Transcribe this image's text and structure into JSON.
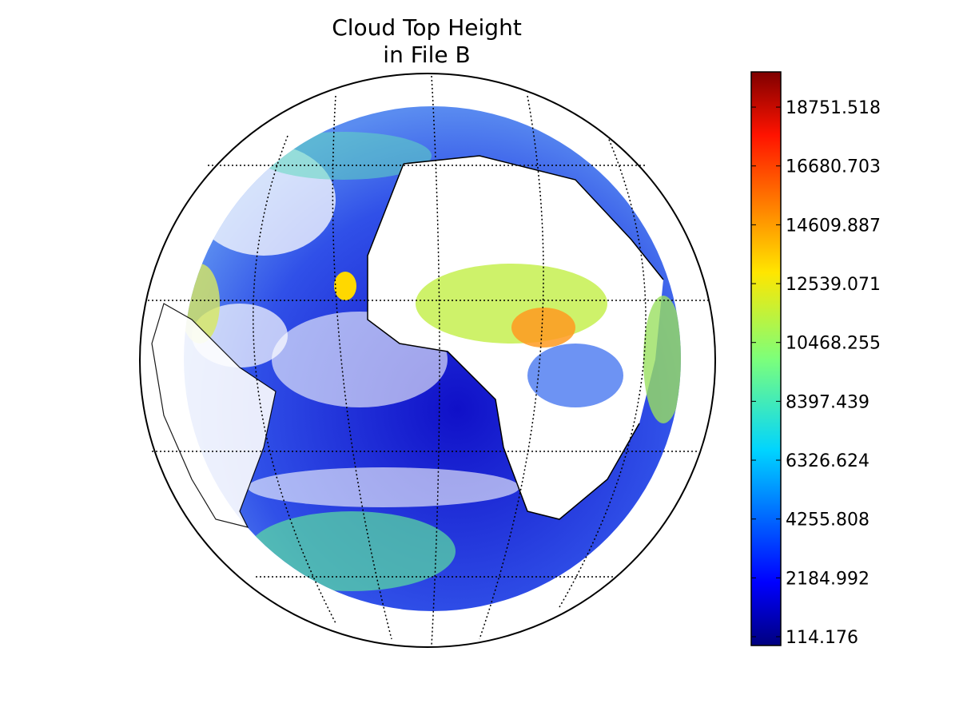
{
  "map": {
    "title": [
      "Cloud Top Height",
      "in File B"
    ]
  },
  "colorbar": {
    "lim": [
      -195,
      19990
    ],
    "ticks": [
      114.176,
      2184.992,
      4255.808,
      6326.624,
      8397.439,
      10468.255,
      12539.071,
      14609.887,
      16680.703,
      18751.518
    ]
  }
}
